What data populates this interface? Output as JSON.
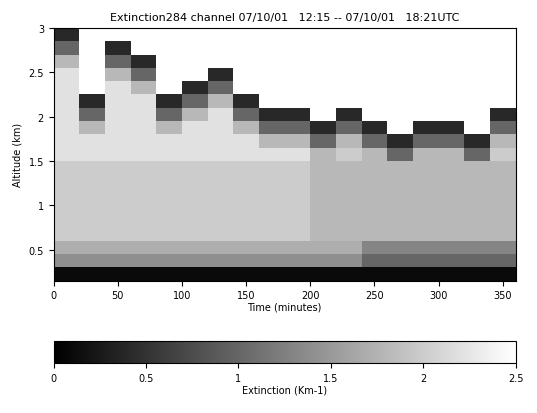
{
  "chart_data": {
    "type": "heatmap",
    "title": "Extinction284 channel 07/10/01   12:15 -- 07/10/01   18:21UTC",
    "x_label": "Time (minutes)",
    "y_label": "Altitude (km)",
    "x_edges": [
      0,
      20,
      40,
      60,
      80,
      100,
      120,
      140,
      160,
      180,
      200,
      220,
      240,
      260,
      280,
      300,
      320,
      340,
      360
    ],
    "y_edges": [
      0.15,
      0.3,
      0.45,
      0.6,
      0.75,
      0.9,
      1.05,
      1.2,
      1.35,
      1.5,
      1.65,
      1.8,
      1.95,
      2.1,
      2.25,
      2.4,
      2.55,
      2.7,
      2.85,
      3.0
    ],
    "cells": [
      [
        0.1,
        0.1,
        0.1,
        0.1,
        0.1,
        0.1,
        0.1,
        0.1,
        0.1,
        0.1,
        0.1,
        0.1,
        0.1,
        0.1,
        0.1,
        0.1,
        0.1,
        0.1
      ],
      [
        1.4,
        1.4,
        1.4,
        1.4,
        1.4,
        1.4,
        1.4,
        1.4,
        1.4,
        1.4,
        1.4,
        1.4,
        1.0,
        1.0,
        1.0,
        1.0,
        1.0,
        1.0
      ],
      [
        1.7,
        1.7,
        1.7,
        1.7,
        1.7,
        1.7,
        1.7,
        1.7,
        1.7,
        1.7,
        1.7,
        1.7,
        1.3,
        1.3,
        1.3,
        1.3,
        1.3,
        1.3
      ],
      [
        2.0,
        2.0,
        2.0,
        2.0,
        2.0,
        2.0,
        2.0,
        2.0,
        2.0,
        2.0,
        1.8,
        1.8,
        1.8,
        1.8,
        1.8,
        1.8,
        1.8,
        1.8
      ],
      [
        2.0,
        2.0,
        2.0,
        2.0,
        2.0,
        2.0,
        2.0,
        2.0,
        2.0,
        2.0,
        1.8,
        1.8,
        1.8,
        1.8,
        1.8,
        1.8,
        1.8,
        1.8
      ],
      [
        2.0,
        2.0,
        2.0,
        2.0,
        2.0,
        2.0,
        2.0,
        2.0,
        2.0,
        2.0,
        1.8,
        1.8,
        1.8,
        1.8,
        1.8,
        1.8,
        1.8,
        1.8
      ],
      [
        2.0,
        2.0,
        2.0,
        2.0,
        2.0,
        2.0,
        2.0,
        2.0,
        2.0,
        2.0,
        1.8,
        1.8,
        1.8,
        1.8,
        1.8,
        1.8,
        1.8,
        1.8
      ],
      [
        2.0,
        2.0,
        2.0,
        2.0,
        2.0,
        2.0,
        2.0,
        2.0,
        2.0,
        2.0,
        1.8,
        1.8,
        1.8,
        1.8,
        1.8,
        1.8,
        1.8,
        1.8
      ],
      [
        2.0,
        2.0,
        2.0,
        2.0,
        2.0,
        2.0,
        2.0,
        2.0,
        2.0,
        2.0,
        1.8,
        1.8,
        1.8,
        1.8,
        1.8,
        1.8,
        1.8,
        1.8
      ],
      [
        2.2,
        2.2,
        2.2,
        2.2,
        2.2,
        2.2,
        2.2,
        2.2,
        2.2,
        2.2,
        1.8,
        2.0,
        1.8,
        1.0,
        1.8,
        1.8,
        1.0,
        2.0
      ],
      [
        2.2,
        2.2,
        2.2,
        2.2,
        2.2,
        2.2,
        2.2,
        2.2,
        1.8,
        1.8,
        1.0,
        1.8,
        1.0,
        0.4,
        1.0,
        1.0,
        0.4,
        1.8
      ],
      [
        2.2,
        1.8,
        2.2,
        2.2,
        1.8,
        2.2,
        2.2,
        1.8,
        1.0,
        1.0,
        0.4,
        1.0,
        0.4,
        null,
        0.4,
        0.4,
        null,
        1.0
      ],
      [
        2.2,
        1.0,
        2.2,
        2.2,
        1.0,
        1.8,
        2.2,
        1.0,
        0.4,
        0.4,
        null,
        0.4,
        null,
        null,
        null,
        null,
        null,
        0.4
      ],
      [
        2.2,
        0.4,
        2.2,
        2.2,
        0.4,
        1.0,
        1.8,
        0.4,
        null,
        null,
        null,
        null,
        null,
        null,
        null,
        null,
        null,
        null
      ],
      [
        2.2,
        null,
        2.2,
        1.8,
        null,
        0.4,
        1.0,
        null,
        null,
        null,
        null,
        null,
        null,
        null,
        null,
        null,
        null,
        null
      ],
      [
        2.2,
        null,
        1.8,
        1.0,
        null,
        null,
        0.4,
        null,
        null,
        null,
        null,
        null,
        null,
        null,
        null,
        null,
        null,
        null
      ],
      [
        1.8,
        null,
        1.0,
        0.4,
        null,
        null,
        null,
        null,
        null,
        null,
        null,
        null,
        null,
        null,
        null,
        null,
        null,
        null
      ],
      [
        1.0,
        null,
        0.4,
        null,
        null,
        null,
        null,
        null,
        null,
        null,
        null,
        null,
        null,
        null,
        null,
        null,
        null,
        null
      ],
      [
        0.4,
        null,
        null,
        null,
        null,
        null,
        null,
        null,
        null,
        null,
        null,
        null,
        null,
        null,
        null,
        null,
        null,
        null
      ]
    ],
    "xlim": [
      0,
      360
    ],
    "xticks": [
      0,
      50,
      100,
      150,
      200,
      250,
      300,
      350
    ],
    "ylim": [
      0.15,
      3.0
    ],
    "yticks": [
      0.5,
      1,
      1.5,
      2,
      2.5,
      3
    ],
    "colorbar_label": "Extinction (Km-1)",
    "colorbar_range": [
      0,
      2.5
    ],
    "colorbar_ticks": [
      0,
      0.5,
      1,
      1.5,
      2,
      2.5
    ],
    "color": "gray"
  }
}
